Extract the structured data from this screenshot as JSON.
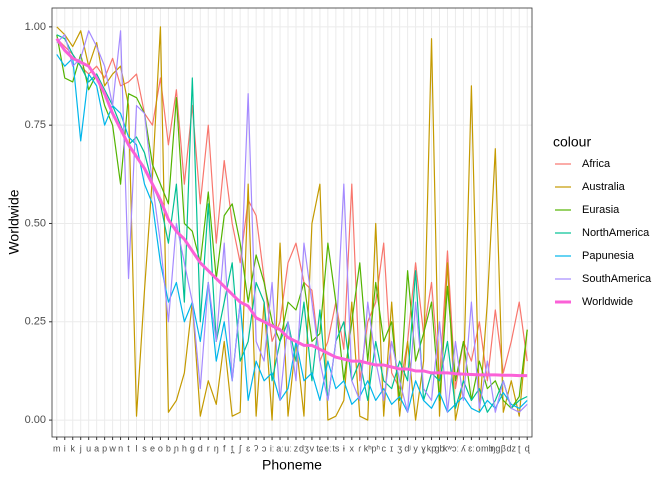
{
  "chart_data": {
    "type": "line",
    "xlabel": "Phoneme",
    "ylabel": "Worldwide",
    "legend_title": "colour",
    "legend": "right",
    "grid": true,
    "categories": [
      "m",
      "i",
      "k",
      "j",
      "u",
      "a",
      "p",
      "w",
      "n",
      "t",
      "l",
      "s",
      "e",
      "o",
      "b",
      "ɲ",
      "h",
      "g",
      "d",
      "r",
      "ŋ",
      "f",
      "t̪",
      "ʃ",
      "ɛ",
      "ʔ",
      "ɔ",
      "iː",
      "aː",
      "uː",
      "z",
      "dʒ",
      "v",
      "tɕ",
      "eː",
      "ts",
      "ɨ",
      "x",
      "ɾ",
      "kʰ",
      "pʰ",
      "c",
      "ɪ",
      "ʒ",
      "dʲ",
      "y",
      "ɣ",
      "kp",
      "gb",
      "kʷ",
      "ɔː",
      "ʎ",
      "ɛː",
      "oː",
      "mb",
      "ŋg",
      "β",
      "dz",
      "ʈ",
      "ɖ"
    ],
    "ylim": [
      -0.043,
      1.048
    ],
    "yticks": [
      {
        "value": 0,
        "label": "0.00"
      },
      {
        "value": 0.25,
        "label": "0.25"
      },
      {
        "value": 0.5,
        "label": "0.50"
      },
      {
        "value": 0.75,
        "label": "0.75"
      },
      {
        "value": 1,
        "label": "1.00"
      }
    ],
    "series": [
      {
        "name": "Africa",
        "color": "#F8766D",
        "width": 1.2,
        "values": [
          0.97,
          0.95,
          0.93,
          0.9,
          0.88,
          0.9,
          0.87,
          0.92,
          0.85,
          0.86,
          0.88,
          0.78,
          0.75,
          0.87,
          0.7,
          0.84,
          0.6,
          0.8,
          0.55,
          0.75,
          0.45,
          0.66,
          0.5,
          0.4,
          0.56,
          0.52,
          0.36,
          0.2,
          0.25,
          0.4,
          0.45,
          0.35,
          0.33,
          0.15,
          0.2,
          0.3,
          0.18,
          0.6,
          0.1,
          0.25,
          0.3,
          0.45,
          0.12,
          0.08,
          0.2,
          0.4,
          0.22,
          0.35,
          0.1,
          0.43,
          0.08,
          0.2,
          0.15,
          0.25,
          0.1,
          0.28,
          0.12,
          0.2,
          0.3,
          0.15
        ]
      },
      {
        "name": "Australia",
        "color": "#C49A00",
        "width": 1.2,
        "values": [
          1.0,
          0.98,
          0.95,
          0.99,
          0.9,
          0.96,
          0.85,
          0.88,
          0.9,
          0.8,
          0.01,
          0.33,
          0.62,
          1.0,
          0.02,
          0.05,
          0.12,
          0.3,
          0.01,
          0.1,
          0.04,
          0.2,
          0.01,
          0.02,
          0.6,
          0.01,
          0.3,
          0.0,
          0.45,
          0.01,
          0.2,
          0.01,
          0.5,
          0.6,
          0.0,
          0.01,
          0.05,
          0.3,
          0.01,
          0.0,
          0.5,
          0.01,
          0.3,
          0.01,
          0.2,
          0.0,
          0.15,
          0.97,
          0.01,
          0.4,
          0.0,
          0.1,
          0.85,
          0.02,
          0.3,
          0.69,
          0.02,
          0.1,
          0.01,
          0.23
        ]
      },
      {
        "name": "Eurasia",
        "color": "#53B400",
        "width": 1.2,
        "values": [
          0.98,
          0.87,
          0.86,
          0.93,
          0.84,
          0.88,
          0.8,
          0.75,
          0.6,
          0.83,
          0.82,
          0.78,
          0.65,
          0.6,
          0.55,
          0.82,
          0.5,
          0.48,
          0.4,
          0.58,
          0.36,
          0.52,
          0.55,
          0.45,
          0.3,
          0.42,
          0.35,
          0.25,
          0.2,
          0.3,
          0.28,
          0.35,
          0.2,
          0.22,
          0.45,
          0.3,
          0.1,
          0.25,
          0.4,
          0.15,
          0.35,
          0.2,
          0.25,
          0.05,
          0.38,
          0.15,
          0.22,
          0.3,
          0.05,
          0.34,
          0.1,
          0.2,
          0.05,
          0.15,
          0.08,
          0.1,
          0.05,
          0.03,
          0.06,
          0.23
        ]
      },
      {
        "name": "NorthAmerica",
        "color": "#00C094",
        "width": 1.2,
        "values": [
          0.98,
          0.97,
          0.93,
          0.9,
          0.86,
          0.88,
          0.84,
          0.8,
          0.75,
          0.7,
          0.72,
          0.68,
          0.6,
          0.55,
          0.45,
          0.6,
          0.3,
          0.87,
          0.25,
          0.55,
          0.2,
          0.3,
          0.4,
          0.15,
          0.2,
          0.35,
          0.3,
          0.1,
          0.2,
          0.25,
          0.15,
          0.3,
          0.1,
          0.28,
          0.05,
          0.2,
          0.25,
          0.1,
          0.15,
          0.05,
          0.2,
          0.1,
          0.08,
          0.15,
          0.1,
          0.38,
          0.05,
          0.12,
          0.1,
          0.2,
          0.03,
          0.1,
          0.05,
          0.08,
          0.02,
          0.05,
          0.1,
          0.03,
          0.05,
          0.06
        ]
      },
      {
        "name": "Papunesia",
        "color": "#00B6EB",
        "width": 1.2,
        "values": [
          0.93,
          0.9,
          0.92,
          0.71,
          0.88,
          0.85,
          0.75,
          0.8,
          0.78,
          0.72,
          0.7,
          0.6,
          0.55,
          0.4,
          0.3,
          0.35,
          0.25,
          0.3,
          0.2,
          0.35,
          0.15,
          0.25,
          0.1,
          0.3,
          0.05,
          0.15,
          0.1,
          0.12,
          0.05,
          0.08,
          0.2,
          0.1,
          0.12,
          0.05,
          0.15,
          0.08,
          0.1,
          0.04,
          0.06,
          0.1,
          0.05,
          0.08,
          0.04,
          0.06,
          0.02,
          0.1,
          0.05,
          0.03,
          0.07,
          0.02,
          0.04,
          0.06,
          0.03,
          0.02,
          0.05,
          0.03,
          0.07,
          0.04,
          0.03,
          0.05
        ]
      },
      {
        "name": "SouthAmerica",
        "color": "#A58AFF",
        "width": 1.2,
        "values": [
          0.96,
          0.98,
          0.9,
          0.92,
          0.99,
          0.95,
          0.9,
          0.8,
          0.99,
          0.36,
          0.8,
          0.78,
          0.6,
          0.45,
          0.25,
          0.5,
          0.4,
          0.3,
          0.08,
          0.35,
          0.2,
          0.45,
          0.1,
          0.3,
          0.83,
          0.2,
          0.15,
          0.35,
          0.05,
          0.25,
          0.1,
          0.45,
          0.3,
          0.15,
          0.05,
          0.2,
          0.6,
          0.1,
          0.05,
          0.3,
          0.15,
          0.05,
          0.2,
          0.1,
          0.02,
          0.3,
          0.08,
          0.05,
          0.25,
          0.02,
          0.2,
          0.05,
          0.3,
          0.03,
          0.15,
          0.02,
          0.1,
          0.03,
          0.02,
          0.04
        ]
      },
      {
        "name": "Worldwide",
        "color": "#FB61D7",
        "width": 3,
        "values": [
          0.97,
          0.94,
          0.92,
          0.91,
          0.9,
          0.87,
          0.83,
          0.78,
          0.74,
          0.7,
          0.67,
          0.64,
          0.6,
          0.56,
          0.51,
          0.48,
          0.46,
          0.43,
          0.4,
          0.38,
          0.36,
          0.34,
          0.32,
          0.3,
          0.29,
          0.26,
          0.25,
          0.24,
          0.23,
          0.21,
          0.2,
          0.19,
          0.19,
          0.18,
          0.17,
          0.16,
          0.155,
          0.15,
          0.15,
          0.145,
          0.14,
          0.14,
          0.135,
          0.13,
          0.13,
          0.125,
          0.125,
          0.12,
          0.12,
          0.12,
          0.118,
          0.117,
          0.116,
          0.115,
          0.115,
          0.115,
          0.114,
          0.114,
          0.113,
          0.113
        ]
      }
    ]
  }
}
